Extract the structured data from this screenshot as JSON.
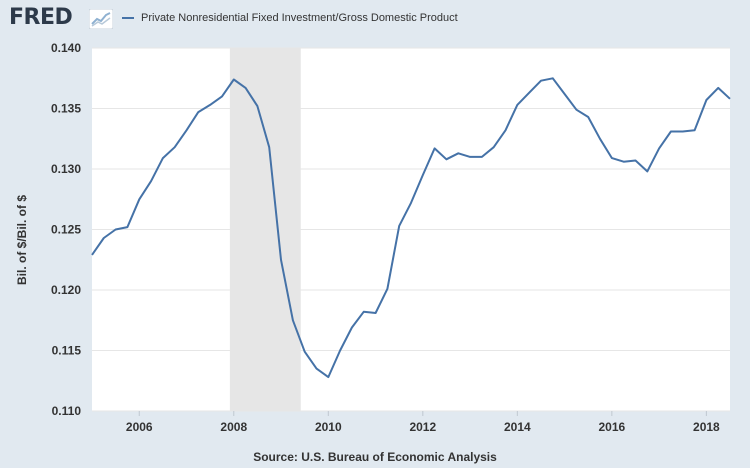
{
  "header": {
    "logo_text": "FRED",
    "legend_label": "Private Nonresidential Fixed Investment/Gross Domestic Product"
  },
  "footer": {
    "source": "Source: U.S. Bureau of Economic Analysis"
  },
  "colors": {
    "series": "#4572a7",
    "plot_background": "#ffffff",
    "page_background": "#e1e9f0",
    "recession_band": "#e6e6e6",
    "gridline": "#e6e6e6"
  },
  "chart_data": {
    "type": "line",
    "title": "",
    "xlabel": "",
    "ylabel": "Bil. of $/Bil. of $",
    "xlim": [
      2005.0,
      2018.5
    ],
    "ylim": [
      0.11,
      0.14
    ],
    "yticks": [
      0.11,
      0.115,
      0.12,
      0.125,
      0.13,
      0.135,
      0.14
    ],
    "ytick_labels": [
      "0.110",
      "0.115",
      "0.120",
      "0.125",
      "0.130",
      "0.135",
      "0.140"
    ],
    "xticks": [
      2006,
      2008,
      2010,
      2012,
      2014,
      2016,
      2018
    ],
    "xtick_labels": [
      "2006",
      "2008",
      "2010",
      "2012",
      "2014",
      "2016",
      "2018"
    ],
    "grid": "horizontal",
    "legend": "top-left",
    "recessions": [
      [
        2007.917,
        2009.417
      ]
    ],
    "series": [
      {
        "name": "Private Nonresidential Fixed Investment/Gross Domestic Product",
        "x": [
          2005.0,
          2005.25,
          2005.5,
          2005.75,
          2006.0,
          2006.25,
          2006.5,
          2006.75,
          2007.0,
          2007.25,
          2007.5,
          2007.75,
          2008.0,
          2008.25,
          2008.5,
          2008.75,
          2009.0,
          2009.25,
          2009.5,
          2009.75,
          2010.0,
          2010.25,
          2010.5,
          2010.75,
          2011.0,
          2011.25,
          2011.5,
          2011.75,
          2012.0,
          2012.25,
          2012.5,
          2012.75,
          2013.0,
          2013.25,
          2013.5,
          2013.75,
          2014.0,
          2014.25,
          2014.5,
          2014.75,
          2015.0,
          2015.25,
          2015.5,
          2015.75,
          2016.0,
          2016.25,
          2016.5,
          2016.75,
          2017.0,
          2017.25,
          2017.5,
          2017.75,
          2018.0,
          2018.25,
          2018.5
        ],
        "values": [
          0.1229,
          0.1243,
          0.125,
          0.1252,
          0.1275,
          0.129,
          0.1309,
          0.1318,
          0.1332,
          0.1347,
          0.1353,
          0.136,
          0.1374,
          0.1367,
          0.1352,
          0.1318,
          0.1225,
          0.1175,
          0.1149,
          0.1135,
          0.1128,
          0.115,
          0.1169,
          0.1182,
          0.1181,
          0.1201,
          0.1253,
          0.1272,
          0.1295,
          0.1317,
          0.1308,
          0.1313,
          0.131,
          0.131,
          0.1318,
          0.1332,
          0.1353,
          0.1363,
          0.1373,
          0.1375,
          0.1362,
          0.1349,
          0.1343,
          0.1325,
          0.1309,
          0.1306,
          0.1307,
          0.1298,
          0.1317,
          0.1331,
          0.1331,
          0.1332,
          0.1357,
          0.1367,
          0.1358
        ]
      }
    ]
  }
}
